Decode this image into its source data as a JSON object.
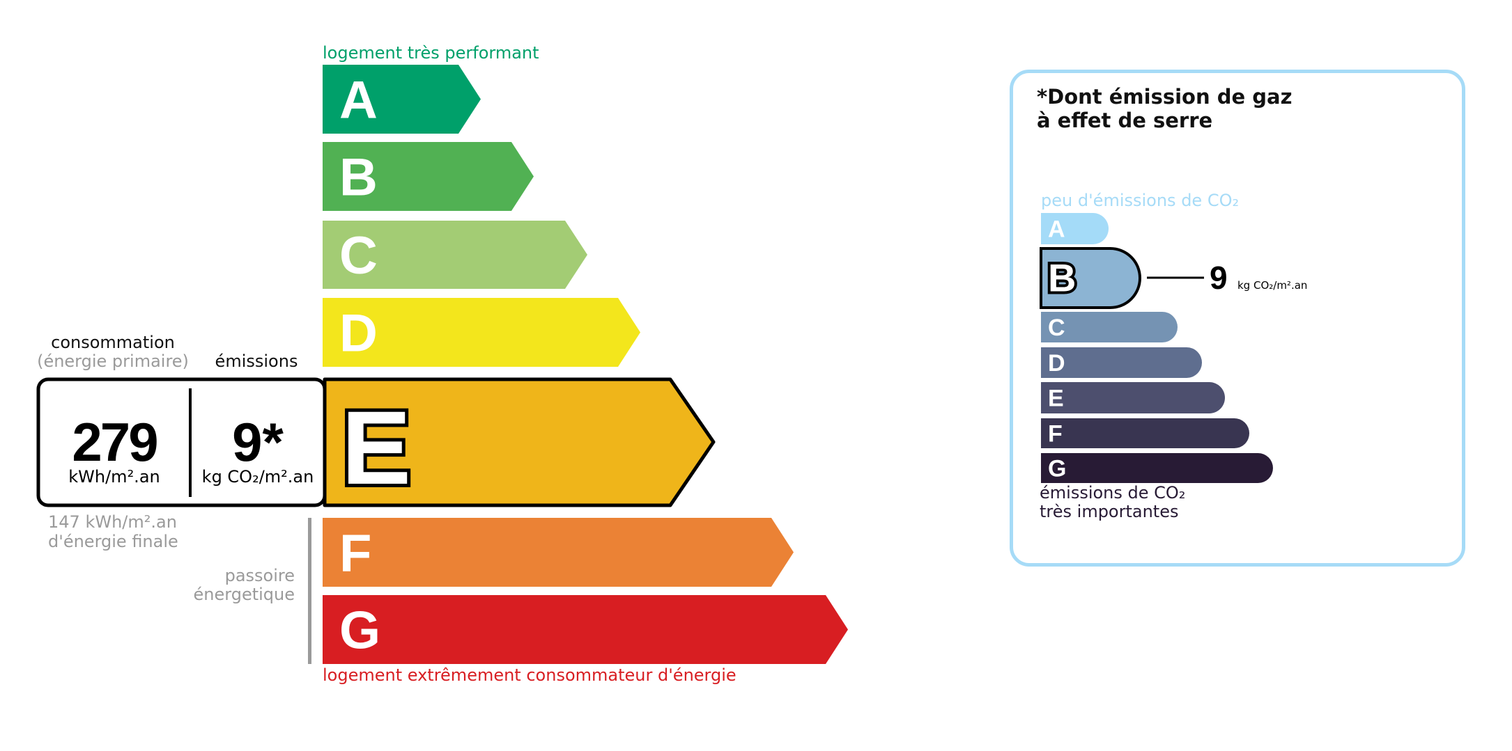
{
  "energy": {
    "top_label": "logement très performant",
    "bottom_label": "logement extrêmement consommateur d'énergie",
    "top_label_color": "#00a06a",
    "bottom_label_color": "#d81e22",
    "classes": [
      {
        "letter": "A",
        "color": "#00a06a"
      },
      {
        "letter": "B",
        "color": "#51b153"
      },
      {
        "letter": "C",
        "color": "#a3cc74"
      },
      {
        "letter": "D",
        "color": "#f3e61c"
      },
      {
        "letter": "E",
        "color": "#efb51a"
      },
      {
        "letter": "F",
        "color": "#eb8235"
      },
      {
        "letter": "G",
        "color": "#d81e22"
      }
    ],
    "current_class": "E",
    "consumption_label": "consommation",
    "consumption_sublabel": "(énergie primaire)",
    "emissions_label": "émissions",
    "consumption_value": "279",
    "consumption_unit": "kWh/m².an",
    "emissions_value": "9*",
    "emissions_unit": "kg CO₂/m².an",
    "final_energy_line1": "147 kWh/m².an",
    "final_energy_line2": "d'énergie finale",
    "passoire_line1": "passoire",
    "passoire_line2": "énergetique"
  },
  "ges": {
    "title_line1": "*Dont émission de gaz",
    "title_line2": "à effet de serre",
    "top_label": "peu d'émissions de CO₂",
    "bottom_label_line1": "émissions de CO₂",
    "bottom_label_line2": "très importantes",
    "border_color": "#a6dbf7",
    "classes": [
      {
        "letter": "A",
        "color": "#a4dbf8"
      },
      {
        "letter": "B",
        "color": "#8cb4d3"
      },
      {
        "letter": "C",
        "color": "#7593b3"
      },
      {
        "letter": "D",
        "color": "#5f6e8f"
      },
      {
        "letter": "E",
        "color": "#4d4f6e"
      },
      {
        "letter": "F",
        "color": "#393551"
      },
      {
        "letter": "G",
        "color": "#281b35"
      }
    ],
    "current_class": "B",
    "value": "9",
    "unit": "kg CO₂/m².an"
  }
}
